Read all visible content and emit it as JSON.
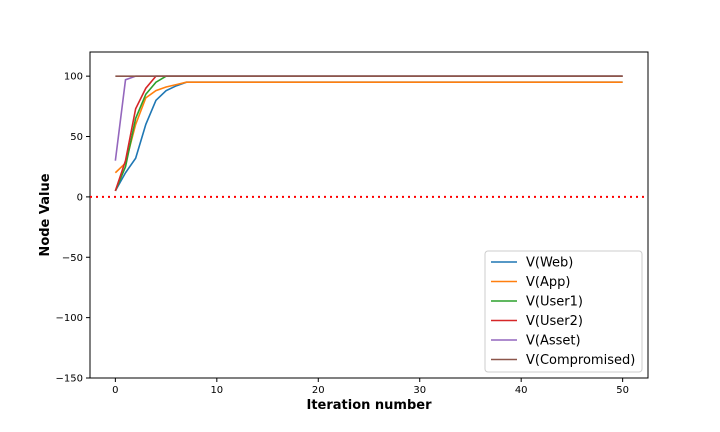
{
  "chart_data": {
    "type": "line",
    "title": "",
    "xlabel": "Iteration number",
    "ylabel": "Node Value",
    "xlim": [
      -2.5,
      52.5
    ],
    "ylim": [
      -150,
      120
    ],
    "xticks": [
      0,
      10,
      20,
      30,
      40,
      50
    ],
    "yticks": [
      -150,
      -100,
      -50,
      0,
      50,
      100
    ],
    "ytick_labels": [
      "−150",
      "−100",
      "−50",
      "0",
      "50",
      "100"
    ],
    "grid": false,
    "legend_position": "lower-right",
    "reference_line": {
      "y": 0,
      "style": "dotted",
      "color": "#ff0000"
    },
    "x": [
      0,
      1,
      2,
      3,
      4,
      5,
      6,
      7,
      8,
      9,
      10,
      11,
      12,
      13,
      14,
      15,
      16,
      17,
      18,
      19,
      20,
      21,
      22,
      23,
      24,
      25,
      26,
      27,
      28,
      29,
      30,
      31,
      32,
      33,
      34,
      35,
      36,
      37,
      38,
      39,
      40,
      41,
      42,
      43,
      44,
      45,
      46,
      47,
      48,
      49,
      50
    ],
    "series": [
      {
        "name": "V(Web)",
        "color": "#1f77b4",
        "head": [
          5,
          20,
          32,
          60,
          80,
          88,
          92,
          95
        ],
        "tail": 95
      },
      {
        "name": "V(App)",
        "color": "#ff7f0e",
        "head": [
          20,
          28,
          60,
          82,
          88,
          91,
          93,
          95
        ],
        "tail": 95
      },
      {
        "name": "V(User1)",
        "color": "#2ca02c",
        "head": [
          5,
          25,
          65,
          85,
          95,
          100
        ],
        "tail": 100
      },
      {
        "name": "V(User2)",
        "color": "#d62728",
        "head": [
          5,
          30,
          73,
          90,
          100
        ],
        "tail": 100
      },
      {
        "name": "V(Asset)",
        "color": "#9467bd",
        "head": [
          30,
          97,
          100
        ],
        "tail": 100
      },
      {
        "name": "V(Compromised)",
        "color": "#8c564b",
        "head": [
          100
        ],
        "tail": 100
      }
    ]
  }
}
